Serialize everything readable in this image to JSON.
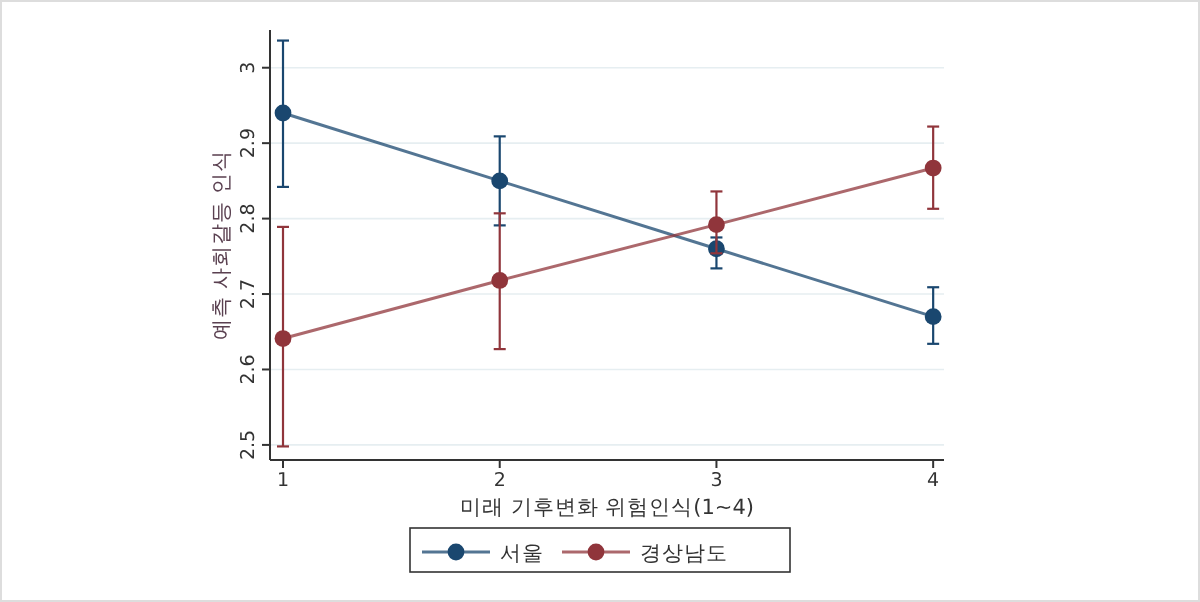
{
  "chart_data": {
    "type": "line",
    "xlabel": "미래 기후변화 위험인식(1~4)",
    "ylabel": "예측 사회갈등 인식",
    "x": [
      1,
      2,
      3,
      4
    ],
    "xlim": [
      0.94,
      4.05
    ],
    "xticks": [
      1,
      2,
      3,
      4
    ],
    "ylim": [
      2.48,
      3.05
    ],
    "yticks": [
      2.5,
      2.6,
      2.7,
      2.8,
      2.9,
      3
    ],
    "grid": "y",
    "legend": "bottom",
    "marker": "circle",
    "line_style": "solid",
    "series": [
      {
        "name": "서울",
        "color": "#1a476f",
        "values": [
          2.94,
          2.85,
          2.76,
          2.67
        ],
        "errors": [
          [
            2.842,
            3.036
          ],
          [
            2.791,
            2.909
          ],
          [
            2.734,
            2.775
          ],
          [
            2.634,
            2.709
          ]
        ]
      },
      {
        "name": "경상남도",
        "color": "#90353b",
        "values": [
          2.641,
          2.718,
          2.792,
          2.867
        ],
        "errors": [
          [
            2.498,
            2.789
          ],
          [
            2.627,
            2.807
          ],
          [
            2.754,
            2.836
          ],
          [
            2.813,
            2.922
          ]
        ]
      }
    ]
  }
}
